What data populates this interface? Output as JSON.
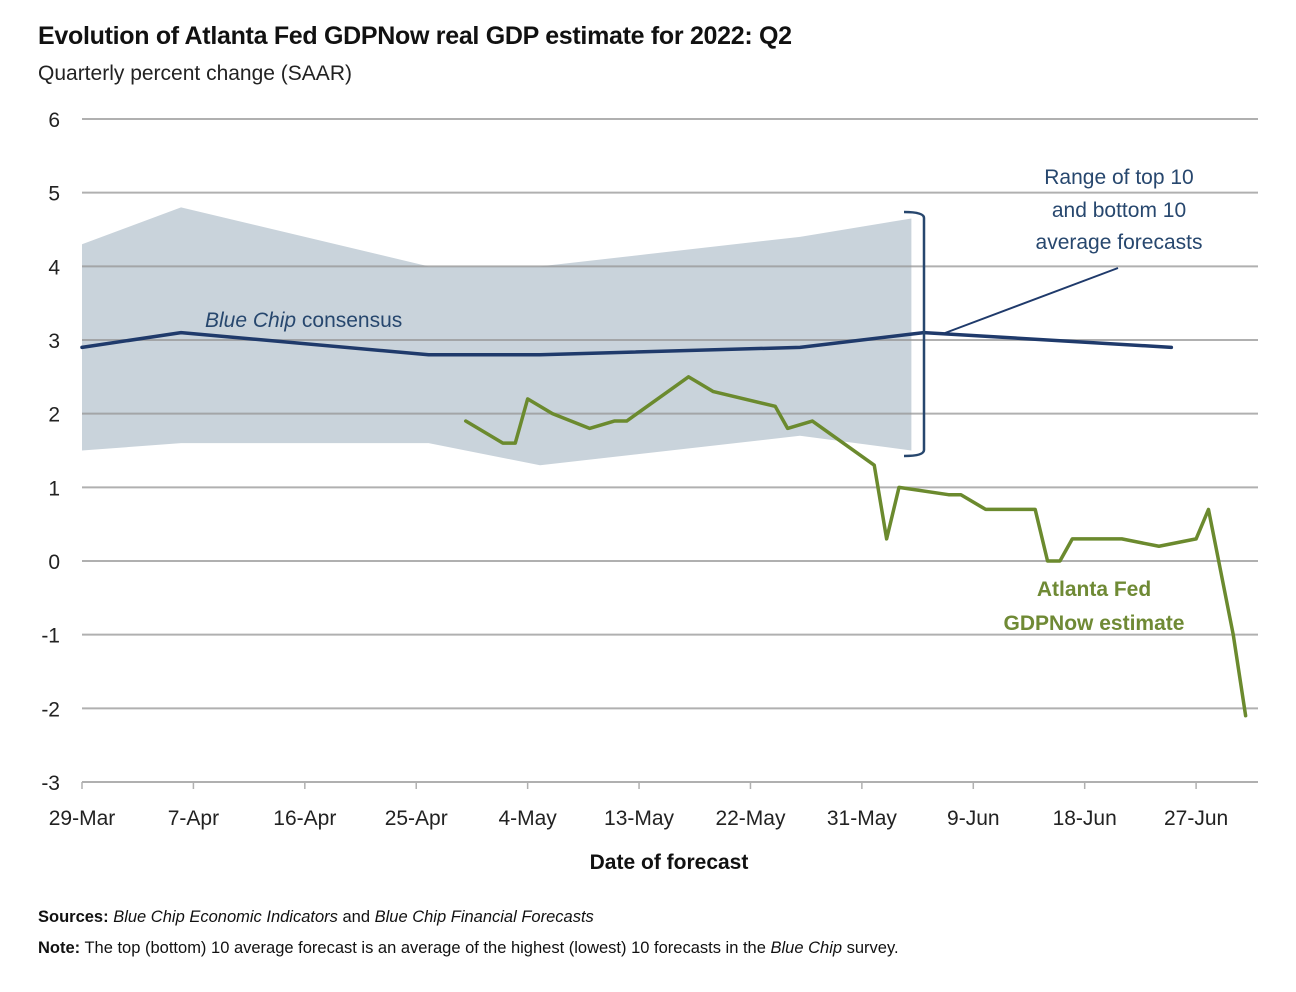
{
  "chart_data": {
    "type": "line",
    "title": "Evolution of Atlanta Fed GDPNow real GDP estimate for 2022: Q2",
    "subtitle": "Quarterly percent change (SAAR)",
    "xlabel": "Date of forecast",
    "ylabel": "",
    "ylim": [
      -3,
      6
    ],
    "yticks": [
      6,
      5,
      4,
      3,
      2,
      1,
      0,
      -1,
      -2,
      -3
    ],
    "x_start": "2022-03-29",
    "x_end": "2022-07-02",
    "xticks": [
      {
        "date": "2022-03-29",
        "label": "29-Mar"
      },
      {
        "date": "2022-04-07",
        "label": "7-Apr"
      },
      {
        "date": "2022-04-16",
        "label": "16-Apr"
      },
      {
        "date": "2022-04-25",
        "label": "25-Apr"
      },
      {
        "date": "2022-05-04",
        "label": "4-May"
      },
      {
        "date": "2022-05-13",
        "label": "13-May"
      },
      {
        "date": "2022-05-22",
        "label": "22-May"
      },
      {
        "date": "2022-05-31",
        "label": "31-May"
      },
      {
        "date": "2022-06-09",
        "label": "9-Jun"
      },
      {
        "date": "2022-06-18",
        "label": "18-Jun"
      },
      {
        "date": "2022-06-27",
        "label": "27-Jun"
      }
    ],
    "grid": true,
    "series": [
      {
        "name": "Range of top 10 and bottom 10 average forecasts",
        "kind": "band",
        "color": "#c9d3db",
        "points": [
          {
            "date": "2022-03-29",
            "low": 1.5,
            "high": 4.3
          },
          {
            "date": "2022-04-06",
            "low": 1.6,
            "high": 4.8
          },
          {
            "date": "2022-04-26",
            "low": 1.6,
            "high": 4.0
          },
          {
            "date": "2022-05-05",
            "low": 1.3,
            "high": 4.0
          },
          {
            "date": "2022-05-26",
            "low": 1.7,
            "high": 4.4
          },
          {
            "date": "2022-06-04",
            "low": 1.5,
            "high": 4.65
          }
        ]
      },
      {
        "name": "Blue Chip consensus",
        "kind": "line",
        "color": "#1f3a6b",
        "points": [
          {
            "date": "2022-03-29",
            "value": 2.9
          },
          {
            "date": "2022-04-06",
            "value": 3.1
          },
          {
            "date": "2022-04-26",
            "value": 2.8
          },
          {
            "date": "2022-05-05",
            "value": 2.8
          },
          {
            "date": "2022-05-26",
            "value": 2.9
          },
          {
            "date": "2022-06-05",
            "value": 3.1
          },
          {
            "date": "2022-06-25",
            "value": 2.9
          }
        ]
      },
      {
        "name": "Atlanta Fed GDPNow estimate",
        "kind": "line",
        "color": "#6b8a2e",
        "points": [
          {
            "date": "2022-04-29",
            "value": 1.9
          },
          {
            "date": "2022-05-02",
            "value": 1.6
          },
          {
            "date": "2022-05-03",
            "value": 1.6
          },
          {
            "date": "2022-05-04",
            "value": 2.2
          },
          {
            "date": "2022-05-06",
            "value": 2.0
          },
          {
            "date": "2022-05-09",
            "value": 1.8
          },
          {
            "date": "2022-05-11",
            "value": 1.9
          },
          {
            "date": "2022-05-12",
            "value": 1.9
          },
          {
            "date": "2022-05-17",
            "value": 2.5
          },
          {
            "date": "2022-05-19",
            "value": 2.3
          },
          {
            "date": "2022-05-24",
            "value": 2.1
          },
          {
            "date": "2022-05-25",
            "value": 1.8
          },
          {
            "date": "2022-05-27",
            "value": 1.9
          },
          {
            "date": "2022-06-01",
            "value": 1.3
          },
          {
            "date": "2022-06-02",
            "value": 0.3
          },
          {
            "date": "2022-06-03",
            "value": 1.0
          },
          {
            "date": "2022-06-07",
            "value": 0.9
          },
          {
            "date": "2022-06-08",
            "value": 0.9
          },
          {
            "date": "2022-06-10",
            "value": 0.7
          },
          {
            "date": "2022-06-14",
            "value": 0.7
          },
          {
            "date": "2022-06-15",
            "value": 0.0
          },
          {
            "date": "2022-06-16",
            "value": 0.0
          },
          {
            "date": "2022-06-17",
            "value": 0.3
          },
          {
            "date": "2022-06-21",
            "value": 0.3
          },
          {
            "date": "2022-06-24",
            "value": 0.2
          },
          {
            "date": "2022-06-27",
            "value": 0.3
          },
          {
            "date": "2022-06-28",
            "value": 0.7
          },
          {
            "date": "2022-06-30",
            "value": -1.0
          },
          {
            "date": "2022-07-01",
            "value": -2.1
          }
        ]
      }
    ],
    "annotations": {
      "consensus_prefix": "Blue Chip",
      "consensus_suffix": " consensus",
      "range_lines": [
        "Range of top 10",
        "and bottom 10",
        "average forecasts"
      ],
      "gdpnow_lines": [
        "Atlanta Fed",
        "GDPNow estimate"
      ]
    }
  },
  "footer": {
    "sources_label": "Sources:",
    "sources_1": "Blue Chip Economic Indicators",
    "sources_and": " and ",
    "sources_2": "Blue Chip Financial Forecasts",
    "note_label": "Note:",
    "note_text_1": " The top (bottom) 10 average forecast is an average of the highest (lowest) 10 forecasts in the ",
    "note_italic": "Blue Chip",
    "note_text_2": " survey."
  }
}
